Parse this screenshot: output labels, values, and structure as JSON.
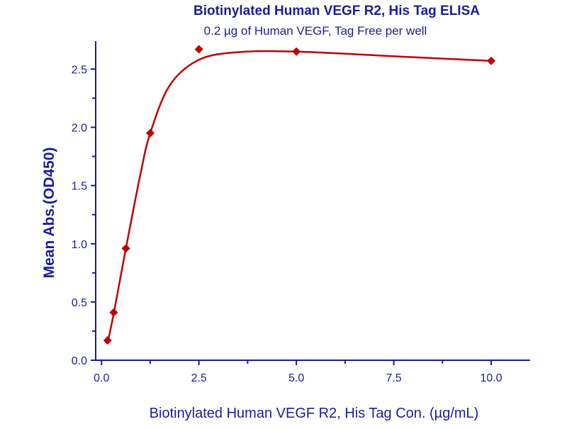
{
  "chart_data": {
    "type": "scatter",
    "title": "Biotinylated Human VEGF R2, His Tag ELISA",
    "subtitle": "0.2 µg of Human VEGF, Tag Free per well",
    "xlabel": "Biotinylated Human VEGF R2, His Tag Con. (µg/mL)",
    "ylabel": "Mean Abs.(OD450)",
    "xlim": [
      -0.15,
      11
    ],
    "ylim": [
      0,
      2.74
    ],
    "xticks": [
      0,
      2.5,
      5,
      7.5,
      10
    ],
    "xtick_labels": [
      "0.0",
      "2.5",
      "5.0",
      "7.5",
      "10.0"
    ],
    "yticks": [
      0,
      0.5,
      1,
      1.5,
      2,
      2.5
    ],
    "ytick_labels": [
      "0.0",
      "0.5",
      "1.0",
      "1.5",
      "2.0",
      "2.5"
    ],
    "grid": false,
    "series": [
      {
        "name": "data",
        "marker": "diamond",
        "x": [
          0.156,
          0.3125,
          0.625,
          1.25,
          2.5,
          5,
          10
        ],
        "y": [
          0.17,
          0.41,
          0.96,
          1.95,
          2.67,
          2.65,
          2.57
        ]
      },
      {
        "name": "fit",
        "marker": "none",
        "x": [
          0.156,
          0.3125,
          0.625,
          1.0,
          1.25,
          1.75,
          2.5,
          3.5,
          5,
          7.5,
          10
        ],
        "y": [
          0.15,
          0.4,
          0.96,
          1.6,
          1.95,
          2.36,
          2.58,
          2.645,
          2.65,
          2.61,
          2.57
        ]
      }
    ],
    "colors": {
      "axis": "#1c1c96",
      "series": "#c00000",
      "text": "#1c1c96"
    }
  }
}
